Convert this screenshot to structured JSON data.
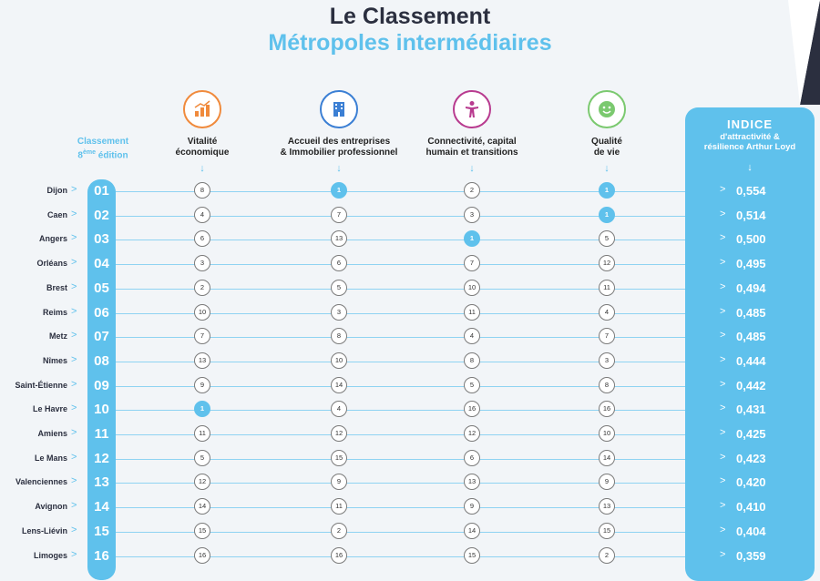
{
  "title_line1": "Le Classement",
  "title_line2": "Métropoles intermédiaires",
  "classement_header": {
    "line1": "Classement",
    "line2_prefix": "8",
    "line2_sup": "ème",
    "line2_suffix": " édition"
  },
  "columns": [
    {
      "label_l1": "Vitalité",
      "label_l2": "économique",
      "icon": "bar-chart-icon",
      "color": "#f08a3c"
    },
    {
      "label_l1": "Accueil des entreprises",
      "label_l2": "& Immobilier professionnel",
      "icon": "building-icon",
      "color": "#3b7fd4"
    },
    {
      "label_l1": "Connectivité, capital",
      "label_l2": "humain et transitions",
      "icon": "person-icon",
      "color": "#b83b8f"
    },
    {
      "label_l1": "Qualité",
      "label_l2": "de vie",
      "icon": "smiley-icon",
      "color": "#7bc96f"
    }
  ],
  "index_header": {
    "title": "INDICE",
    "sub1": "d'attractivité &",
    "sub2": "résilience Arthur Loyd"
  },
  "arrow_glyph": "↓",
  "chevron_glyph": ">",
  "rows": [
    {
      "city": "Dijon",
      "rank": "01",
      "scores": [
        "8",
        "1",
        "2",
        "1"
      ],
      "index": "0,554"
    },
    {
      "city": "Caen",
      "rank": "02",
      "scores": [
        "4",
        "7",
        "3",
        "1"
      ],
      "index": "0,514"
    },
    {
      "city": "Angers",
      "rank": "03",
      "scores": [
        "6",
        "13",
        "1",
        "5"
      ],
      "index": "0,500"
    },
    {
      "city": "Orléans",
      "rank": "04",
      "scores": [
        "3",
        "6",
        "7",
        "12"
      ],
      "index": "0,495"
    },
    {
      "city": "Brest",
      "rank": "05",
      "scores": [
        "2",
        "5",
        "10",
        "11"
      ],
      "index": "0,494"
    },
    {
      "city": "Reims",
      "rank": "06",
      "scores": [
        "10",
        "3",
        "11",
        "4"
      ],
      "index": "0,485"
    },
    {
      "city": "Metz",
      "rank": "07",
      "scores": [
        "7",
        "8",
        "4",
        "7"
      ],
      "index": "0,485"
    },
    {
      "city": "Nîmes",
      "rank": "08",
      "scores": [
        "13",
        "10",
        "8",
        "3"
      ],
      "index": "0,444"
    },
    {
      "city": "Saint-Étienne",
      "rank": "09",
      "scores": [
        "9",
        "14",
        "5",
        "8"
      ],
      "index": "0,442"
    },
    {
      "city": "Le Havre",
      "rank": "10",
      "scores": [
        "1",
        "4",
        "16",
        "16"
      ],
      "index": "0,431"
    },
    {
      "city": "Amiens",
      "rank": "11",
      "scores": [
        "11",
        "12",
        "12",
        "10"
      ],
      "index": "0,425"
    },
    {
      "city": "Le Mans",
      "rank": "12",
      "scores": [
        "5",
        "15",
        "6",
        "14"
      ],
      "index": "0,423"
    },
    {
      "city": "Valenciennes",
      "rank": "13",
      "scores": [
        "12",
        "9",
        "13",
        "9"
      ],
      "index": "0,420"
    },
    {
      "city": "Avignon",
      "rank": "14",
      "scores": [
        "14",
        "11",
        "9",
        "13"
      ],
      "index": "0,410"
    },
    {
      "city": "Lens-Liévin",
      "rank": "15",
      "scores": [
        "15",
        "2",
        "14",
        "15"
      ],
      "index": "0,404"
    },
    {
      "city": "Limoges",
      "rank": "16",
      "scores": [
        "16",
        "16",
        "15",
        "2"
      ],
      "index": "0,359"
    }
  ]
}
